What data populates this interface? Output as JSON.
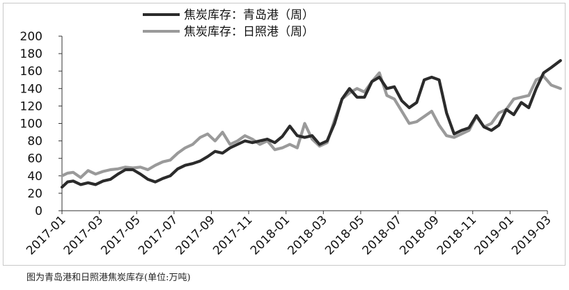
{
  "caption": "图为青岛港和日照港焦炭库存(单位:万吨)",
  "chart_data": {
    "type": "line",
    "title": "",
    "xlabel": "",
    "ylabel": "",
    "ylim": [
      0,
      200
    ],
    "y_ticks": [
      0,
      20,
      40,
      60,
      80,
      100,
      120,
      140,
      160,
      180,
      200
    ],
    "x_tick_labels": [
      "2017-01",
      "2017-03",
      "2017-05",
      "2017-07",
      "2017-09",
      "2017-11",
      "2018-01",
      "2018-03",
      "2018-05",
      "2018-07",
      "2018-09",
      "2018-11",
      "2019-01",
      "2019-03"
    ],
    "grid": false,
    "legend_position": "top",
    "series": [
      {
        "name": "焦炭库存：青岛港（周）",
        "color": "#2b2b2b",
        "x": [
          0,
          0.3,
          0.6,
          1,
          1.4,
          1.8,
          2.2,
          2.6,
          3,
          3.4,
          3.8,
          4.2,
          4.6,
          5,
          5.4,
          5.8,
          6.2,
          6.6,
          7,
          7.4,
          7.8,
          8.2,
          8.6,
          9,
          9.4,
          9.8,
          10.2,
          10.6,
          11,
          11.4,
          11.8,
          12.2,
          12.6,
          13,
          13.4,
          13.8,
          14.2,
          14.6,
          15,
          15.4,
          15.8,
          16.2,
          16.6,
          17,
          17.4,
          17.8,
          18.2,
          18.6,
          19,
          19.4,
          19.8,
          20.2,
          20.6,
          21,
          21.4,
          21.8,
          22.2,
          22.6,
          23,
          23.4,
          23.8,
          24.2,
          24.6,
          25,
          25.4,
          25.8,
          26.2,
          26.7
        ],
        "y": [
          27,
          33,
          34,
          30,
          32,
          30,
          34,
          36,
          42,
          47,
          47,
          42,
          36,
          33,
          37,
          40,
          48,
          52,
          54,
          57,
          62,
          68,
          66,
          72,
          76,
          80,
          78,
          80,
          82,
          78,
          85,
          97,
          86,
          84,
          86,
          76,
          80,
          100,
          128,
          140,
          130,
          130,
          148,
          153,
          140,
          142,
          126,
          118,
          124,
          150,
          153,
          150,
          112,
          88,
          92,
          95,
          109,
          96,
          92,
          98,
          116,
          110,
          124,
          118,
          140,
          158,
          164,
          172
        ],
        "role": "primary"
      },
      {
        "name": "焦炭库存：日照港（周）",
        "color": "#9a9a9a",
        "x": [
          0,
          0.3,
          0.6,
          1,
          1.4,
          1.8,
          2.2,
          2.6,
          3,
          3.4,
          3.8,
          4.2,
          4.6,
          5,
          5.4,
          5.8,
          6.2,
          6.6,
          7,
          7.4,
          7.8,
          8.2,
          8.6,
          9,
          9.4,
          9.8,
          10.2,
          10.6,
          11,
          11.4,
          11.8,
          12.2,
          12.6,
          13,
          13.4,
          13.8,
          14.2,
          14.6,
          15,
          15.4,
          15.8,
          16.2,
          16.6,
          17,
          17.4,
          17.8,
          18.2,
          18.6,
          19,
          19.4,
          19.8,
          20.2,
          20.6,
          21,
          21.4,
          21.8,
          22.2,
          22.6,
          23,
          23.4,
          23.8,
          24.2,
          24.6,
          25,
          25.4,
          25.8,
          26.2,
          26.7
        ],
        "y": [
          40,
          43,
          44,
          38,
          46,
          42,
          45,
          47,
          48,
          50,
          49,
          50,
          47,
          52,
          56,
          58,
          66,
          72,
          76,
          84,
          88,
          80,
          90,
          76,
          80,
          86,
          82,
          76,
          80,
          70,
          72,
          76,
          72,
          100,
          82,
          74,
          78,
          104,
          128,
          135,
          140,
          136,
          148,
          158,
          132,
          128,
          114,
          100,
          102,
          108,
          114,
          98,
          86,
          84,
          88,
          92,
          108,
          96,
          100,
          112,
          116,
          128,
          130,
          132,
          150,
          154,
          144,
          140
        ],
        "role": "secondary"
      }
    ]
  }
}
